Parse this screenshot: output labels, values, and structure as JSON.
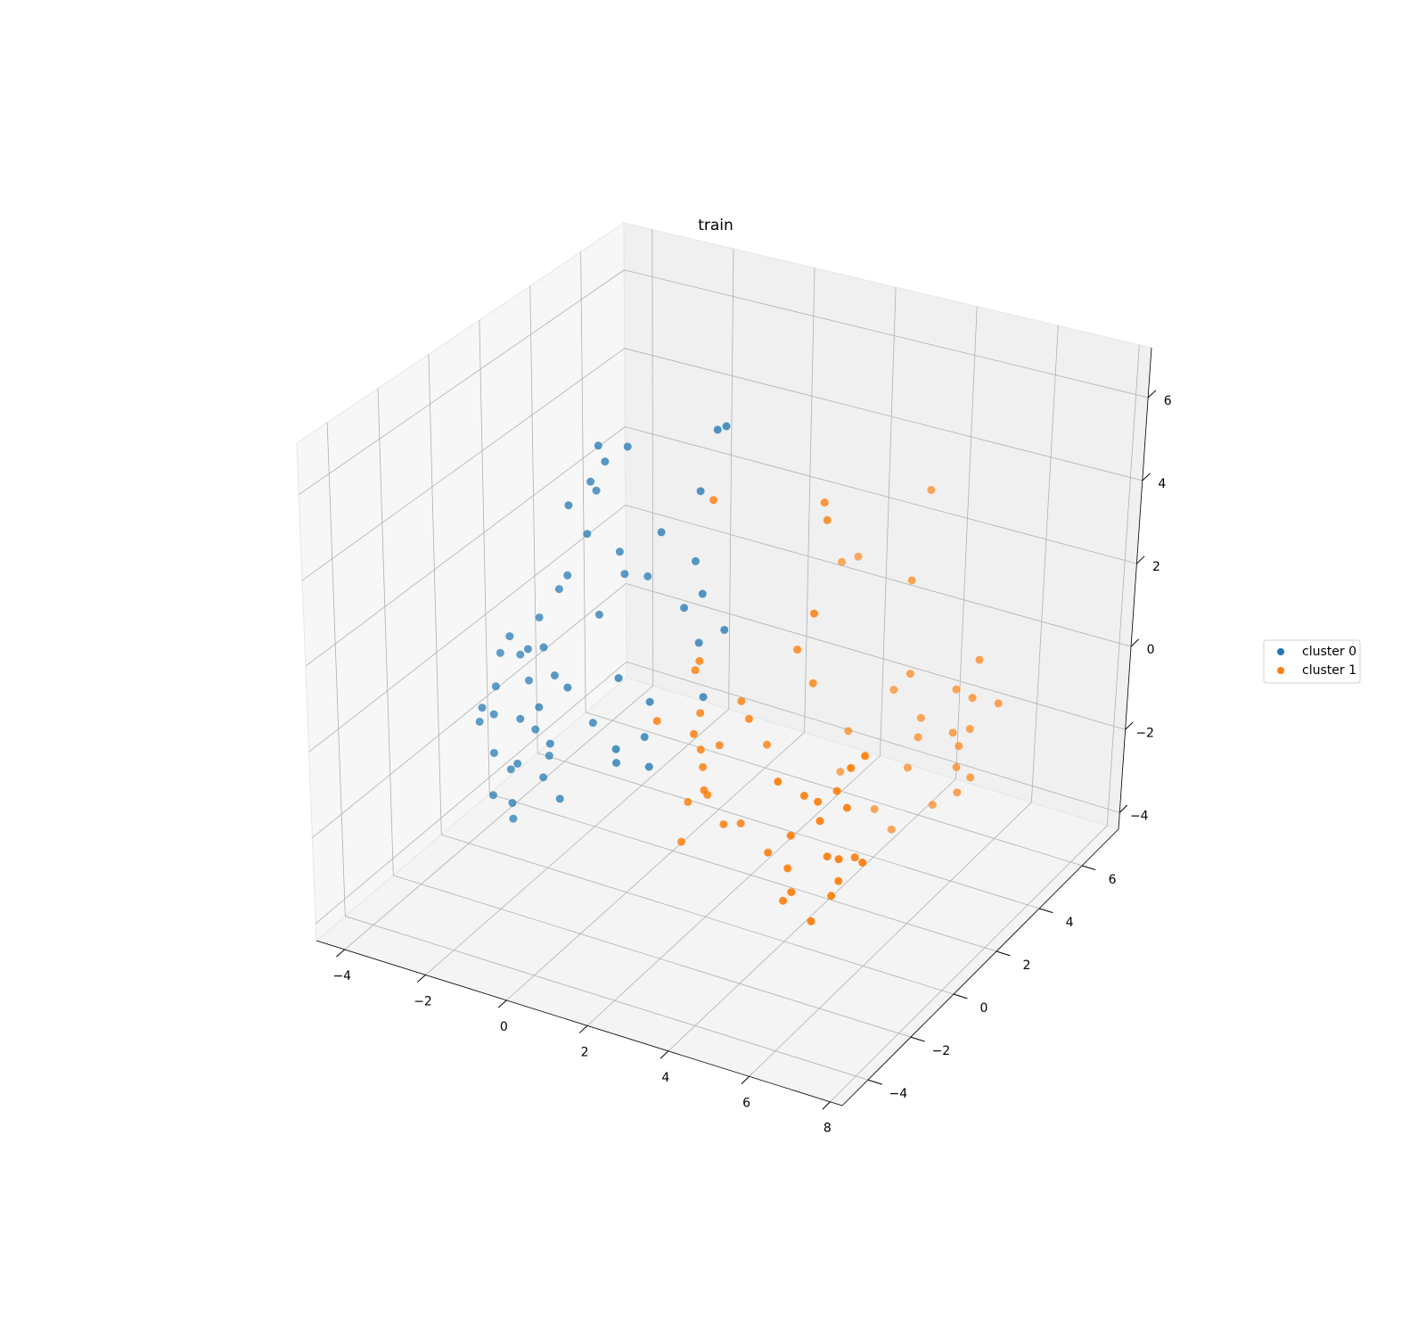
{
  "chart_data": {
    "type": "scatter3d",
    "title": "train",
    "xlim": [
      -4.7,
      8.3
    ],
    "ylim": [
      -5.2,
      7.7
    ],
    "zlim": [
      -4.4,
      7.2
    ],
    "xticks": [
      {
        "value": -4,
        "label": "−4"
      },
      {
        "value": -2,
        "label": "−2"
      },
      0,
      2,
      4,
      6,
      8
    ],
    "yticks": [
      {
        "value": -4,
        "label": "−4"
      },
      {
        "value": -2,
        "label": "−2"
      },
      0,
      2,
      4,
      6
    ],
    "zticks": [
      {
        "value": -4,
        "label": "−4"
      },
      {
        "value": -2,
        "label": "−2"
      },
      0,
      2,
      4,
      6
    ],
    "grid": true,
    "legend": "center right",
    "series": [
      {
        "name": "cluster 0",
        "color": "#1f77b4",
        "x": [
          -4.41,
          -4.15,
          -4.04,
          -3.92,
          -3.81,
          -3.7,
          -3.6,
          -3.49,
          -3.38,
          -3.27,
          -3.16,
          -3.05,
          -2.94,
          -2.83,
          -2.72,
          -2.61,
          -2.5,
          -2.39,
          -2.28,
          -2.06,
          -1.73,
          -1.62,
          -1.39,
          -0.8,
          -2.06,
          -1.17,
          -0.6,
          0.08,
          0.85,
          1.47,
          0.63,
          0.98,
          0.96,
          0.3,
          1.47,
          -0.73,
          -0.07,
          1.14,
          -0.62,
          -0.73,
          -0.14,
          0.15,
          -1.73,
          -2.28,
          -3.43,
          -3.6,
          -4.04,
          -2.94,
          -2.72,
          -1.11,
          -1.62,
          -3.16,
          -3.92,
          1.62,
          -1.17,
          -1.7
        ],
        "y": [
          1.2,
          0.9,
          1.5,
          1.1,
          0.8,
          1.3,
          1.6,
          1.0,
          1.2,
          1.4,
          0.7,
          1.5,
          1.1,
          1.3,
          0.9,
          1.6,
          1.2,
          0.8,
          1.4,
          1.0,
          1.3,
          1.5,
          1.2,
          1.4,
          1.1,
          1.7,
          1.9,
          1.3,
          1.6,
          1.2,
          1.8,
          1.5,
          1.4,
          1.9,
          1.6,
          0.9,
          1.1,
          1.3,
          0.6,
          0.8,
          1.0,
          0.7,
          1.5,
          1.0,
          0.9,
          1.2,
          1.1,
          1.4,
          1.3,
          1.8,
          1.6,
          1.2,
          1.0,
          1.3,
          1.1,
          1.4
        ],
        "z": [
          -2.16,
          -1.6,
          -0.52,
          -1.11,
          -2.55,
          -3.16,
          -0.48,
          0.28,
          -1.79,
          -0.92,
          -2.57,
          0.63,
          -1.87,
          0.06,
          -1.17,
          1.4,
          -0.48,
          -1.91,
          1.92,
          -0.55,
          3.13,
          4.12,
          5.41,
          5.46,
          3.82,
          2.67,
          2.14,
          3.68,
          4.75,
          6.59,
          2.9,
          2.35,
          1.21,
          1.63,
          1.57,
          0.11,
          -0.37,
          0.0,
          -1.43,
          -1.89,
          -1.19,
          -1.68,
          -1.55,
          -3.31,
          -3.7,
          -4.28,
          -3.79,
          -3.18,
          -2.54,
          2.1,
          1.06,
          -0.03,
          -1.74,
          6.67,
          5.13,
          4.36
        ]
      },
      {
        "name": "cluster 1",
        "color": "#ff7f0e",
        "x": [
          5.71,
          4.96,
          5.9,
          5.52,
          4.6,
          4.8,
          6.23,
          6.58,
          4.91,
          5.39,
          6.05,
          6.27,
          6.55,
          4.62,
          4.2,
          5.74,
          5.56,
          6.1,
          5.84,
          5.0,
          1.53,
          1.49,
          1.87,
          1.9,
          2.48,
          2.85,
          1.64,
          0.92,
          1.6,
          1.89,
          2.18,
          1.89,
          2.59,
          1.62,
          1.89,
          1.9,
          4.42,
          3.01,
          4.5,
          4.0,
          4.13,
          2.41,
          2.7,
          4.11,
          4.27,
          3.65,
          4.53,
          5.28,
          5.88,
          5.91,
          6.3,
          5.35,
          5.67,
          5.57,
          4.42,
          4.24,
          5.37,
          5.79,
          5.58,
          4.75,
          3.43,
          3.83,
          2.81,
          2.41,
          3.49,
          3.84,
          2.85
        ],
        "y": [
          -1.3,
          -1.5,
          -1.1,
          -1.6,
          -1.2,
          -1.4,
          -1.0,
          -1.3,
          -1.5,
          -1.2,
          -1.1,
          -1.4,
          -1.3,
          -1.6,
          -1.2,
          -1.0,
          -1.4,
          -1.5,
          -1.3,
          -1.1,
          0.0,
          -0.2,
          0.1,
          0.2,
          -0.1,
          0.0,
          0.3,
          -0.3,
          0.1,
          -0.1,
          0.2,
          0.0,
          0.4,
          0.1,
          -0.2,
          0.3,
          0.2,
          0.0,
          5.1,
          1.3,
          1.2,
          5.0,
          5.2,
          5.1,
          4.9,
          5.3,
          5.0,
          5.2,
          5.1,
          4.8,
          5.3,
          5.0,
          5.2,
          4.9,
          5.1,
          5.0,
          5.2,
          5.1,
          4.9,
          5.3,
          5.0,
          5.1,
          4.8,
          5.2,
          1.2,
          1.3,
          1.1
        ],
        "z": [
          -1.22,
          -2.19,
          -1.85,
          -2.67,
          -2.65,
          -1.72,
          -1.24,
          -1.11,
          -0.86,
          -0.06,
          -0.06,
          1.1,
          1.42,
          0.39,
          -1.62,
          0.2,
          -0.37,
          -1.07,
          -2.12,
          -0.08,
          -1.78,
          -2.65,
          -1.45,
          -1.6,
          -1.99,
          -1.91,
          0.24,
          0.13,
          -0.18,
          -0.37,
          -0.33,
          -0.84,
          0.75,
          1.36,
          1.8,
          5.43,
          3.47,
          0.64,
          4.1,
          5.49,
          5.15,
          1.84,
          1.95,
          1.8,
          -0.33,
          -1.09,
          -1.38,
          -0.58,
          0.35,
          -0.41,
          -0.69,
          -1.51,
          -1.43,
          -1.72,
          -1.93,
          -2.67,
          -2.44,
          -2.52,
          -2.84,
          -3.58,
          -3.91,
          -4.34,
          -2.08,
          -3.39,
          1.86,
          1.1,
          -0.56
        ]
      }
    ]
  }
}
